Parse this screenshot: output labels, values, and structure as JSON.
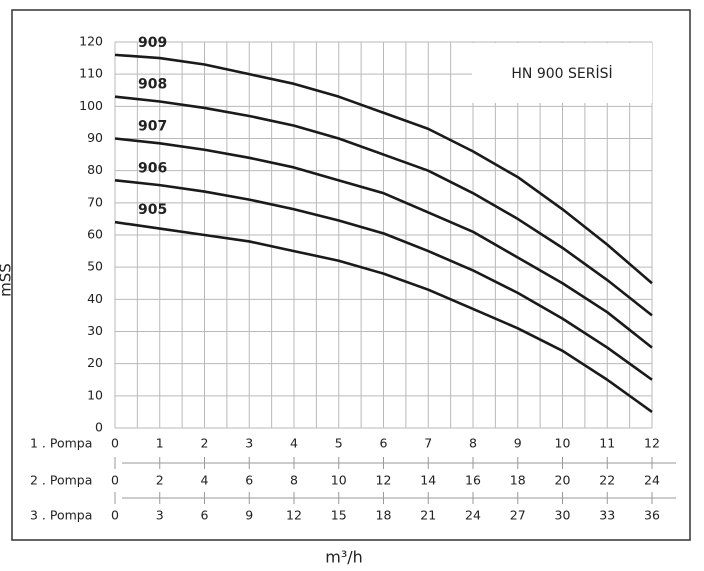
{
  "chart_data": {
    "type": "line",
    "title": "HN 900 SERİSİ",
    "y_label": "mSS",
    "x_label": "m³/h",
    "x": [
      0,
      1,
      2,
      3,
      4,
      5,
      6,
      7,
      8,
      9,
      10,
      11,
      12
    ],
    "series": [
      {
        "name": "909",
        "color": "#1a1a1a",
        "values": [
          116,
          115,
          113,
          110,
          107,
          103,
          98,
          93,
          86,
          78,
          68,
          57,
          45
        ]
      },
      {
        "name": "908",
        "color": "#1a1a1a",
        "values": [
          103,
          101.5,
          99.5,
          97,
          94,
          90,
          85,
          80,
          73,
          65,
          56,
          46,
          35
        ]
      },
      {
        "name": "907",
        "color": "#1a1a1a",
        "values": [
          90,
          88.5,
          86.5,
          84,
          81,
          77,
          73,
          67,
          61,
          53,
          45,
          36,
          25
        ]
      },
      {
        "name": "906",
        "color": "#1a1a1a",
        "values": [
          77,
          75.5,
          73.5,
          71,
          68,
          64.5,
          60.5,
          55,
          49,
          42,
          34,
          25,
          15
        ]
      },
      {
        "name": "905",
        "color": "#1a1a1a",
        "values": [
          64,
          62,
          60,
          58,
          55,
          52,
          48,
          43,
          37,
          31,
          24,
          15,
          5
        ]
      }
    ],
    "xlim": [
      0,
      12
    ],
    "ylim": [
      0,
      120
    ],
    "yticks": [
      0,
      10,
      20,
      30,
      40,
      50,
      60,
      70,
      80,
      90,
      100,
      110,
      120
    ],
    "xminorticks": [
      0.5,
      1.5,
      2.5,
      3.5,
      4.5,
      5.5,
      6.5,
      7.5,
      8.5,
      9.5,
      10.5,
      11.5
    ],
    "grid": true,
    "flow_axes": [
      {
        "label": "1 . Pompa",
        "lim": [
          0,
          12
        ],
        "ticks": [
          0,
          1,
          2,
          3,
          4,
          5,
          6,
          7,
          8,
          9,
          10,
          11,
          12
        ]
      },
      {
        "label": "2 . Pompa",
        "lim": [
          0,
          24
        ],
        "ticks": [
          0,
          2,
          4,
          6,
          8,
          10,
          12,
          14,
          16,
          18,
          20,
          22,
          24
        ]
      },
      {
        "label": "3 . Pompa",
        "lim": [
          0,
          36
        ],
        "ticks": [
          0,
          3,
          6,
          9,
          12,
          15,
          18,
          21,
          24,
          27,
          30,
          33,
          36
        ]
      }
    ]
  }
}
